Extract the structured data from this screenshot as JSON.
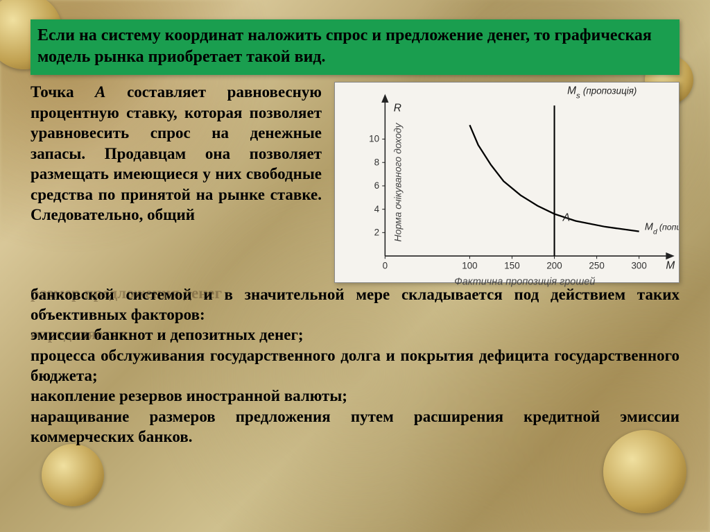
{
  "title": "Если на систему координат наложить спрос и предложение денег, то графическая модель рынка приобретает такой вид.",
  "left_text": {
    "para": "Точка ",
    "point": "А",
    "cont": " составляет равновесную процентную ставку, которая позволяет уравновесить спрос на денежные запасы. Продавцам она позволяет размещать имеющиеся у них свободные средства по принятой на рынке ставке. Следовательно, общий"
  },
  "shadow1": "размер предложения денег",
  "shadow2": "определяется",
  "lower": {
    "p1": "банковской системой и в значительной мере складывается под действием таких объективных факторов:",
    "p2": "эмиссии банкнот и депозитных денег;",
    "p3": "процесса обслуживания государственного долга и покрытия дефицита государственного бюджета;",
    "p4": "накопление резервов иностранной валюты;",
    "p5": "наращивание размеров предложения путем расширения кредитной эмиссии коммерческих банков."
  },
  "chart": {
    "type": "line",
    "background_color": "#f5f3ee",
    "axis_color": "#222222",
    "curve_color": "#000000",
    "vline_color": "#000000",
    "title_top": "M",
    "title_top_sub": "s",
    "title_top_paren": "(пропозиція)",
    "y_axis_label": "Норма очікуваного доходу",
    "x_axis_label": "Фактична пропозиція грошей",
    "y_top_label": "R",
    "x_right_label": "M",
    "right_label": "M",
    "right_sub": "d",
    "right_paren": "(попит)",
    "point_label": "A",
    "x_ticks": [
      0,
      100,
      150,
      200,
      250,
      300
    ],
    "y_ticks": [
      2,
      4,
      6,
      8,
      10
    ],
    "xlim": [
      0,
      330
    ],
    "ylim": [
      0,
      13
    ],
    "vline_x": 200,
    "curve_points": [
      [
        100,
        11.2
      ],
      [
        110,
        9.5
      ],
      [
        125,
        7.8
      ],
      [
        140,
        6.4
      ],
      [
        160,
        5.2
      ],
      [
        180,
        4.3
      ],
      [
        200,
        3.6
      ],
      [
        225,
        3.0
      ],
      [
        260,
        2.5
      ],
      [
        300,
        2.1
      ]
    ],
    "tick_fontsize": 13,
    "label_fontsize": 14
  }
}
